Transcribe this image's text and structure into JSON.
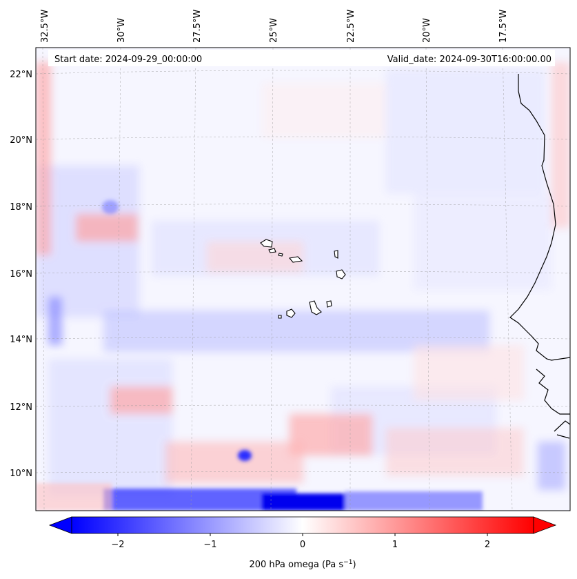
{
  "map": {
    "start_date": "Start date: 2024-09-29_00:00:00",
    "valid_date": "Valid_date: 2024-09-30T16:00:00.00",
    "lon_labels": [
      "32.5°W",
      "30°W",
      "27.5°W",
      "25°W",
      "22.5°W",
      "20°W",
      "17.5°W"
    ],
    "lat_labels": [
      "22°N",
      "20°N",
      "18°N",
      "16°N",
      "14°N",
      "12°N",
      "10°N"
    ],
    "colorbar": {
      "ticks": [
        "−2",
        "−1",
        "0",
        "1",
        "2"
      ],
      "label_main": "200 hPa omega (Pa s",
      "label_sup": "−1",
      "label_end": ")"
    },
    "colors": {
      "negative": "#0000ff",
      "zero": "#ffffff",
      "positive": "#ff0000",
      "coast": "#000000"
    }
  }
}
